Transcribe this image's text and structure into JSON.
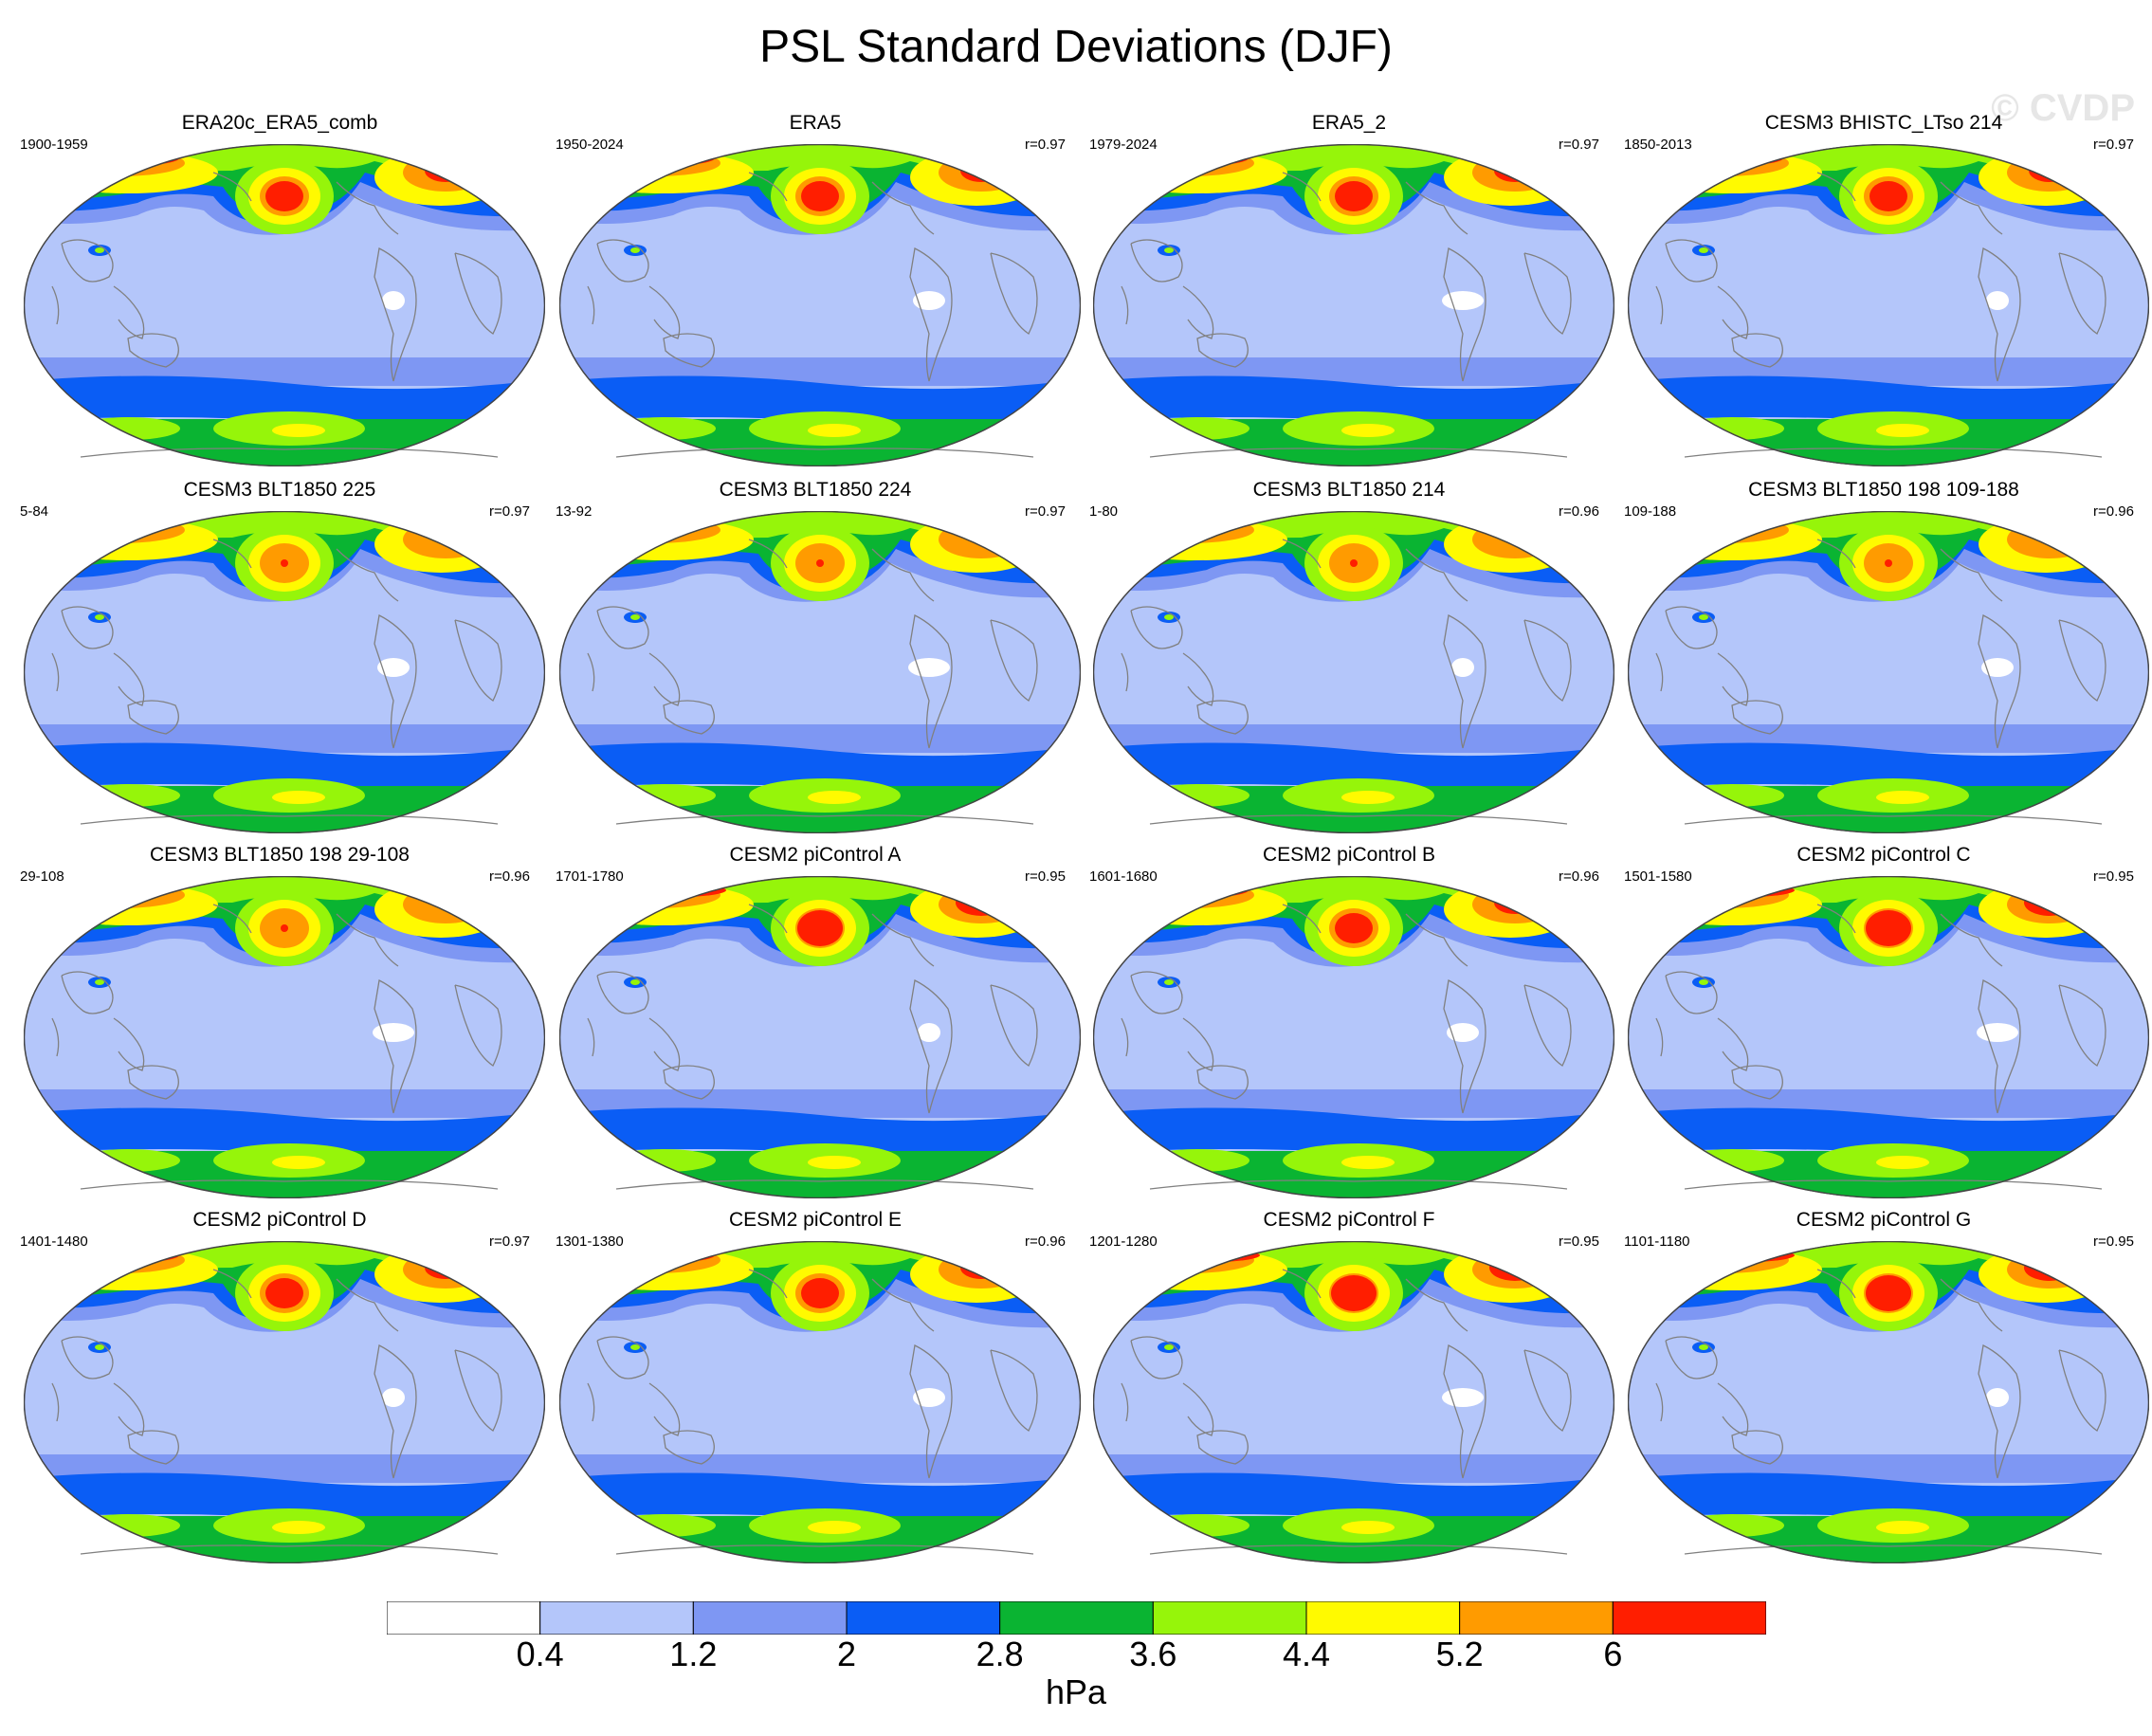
{
  "figure": {
    "title": "PSL Standard Deviations (DJF)",
    "watermark": "© CVDP"
  },
  "panels": [
    {
      "title": "ERA20c_ERA5_comb",
      "period": "1900-1959",
      "corr": ""
    },
    {
      "title": "ERA5",
      "period": "1950-2024",
      "corr": "r=0.97"
    },
    {
      "title": "ERA5_2",
      "period": "1979-2024",
      "corr": "r=0.97"
    },
    {
      "title": "CESM3 BHISTC_LTso 214",
      "period": "1850-2013",
      "corr": "r=0.97"
    },
    {
      "title": "CESM3 BLT1850 225",
      "period": "5-84",
      "corr": "r=0.97"
    },
    {
      "title": "CESM3 BLT1850 224",
      "period": "13-92",
      "corr": "r=0.97"
    },
    {
      "title": "CESM3 BLT1850 214",
      "period": "1-80",
      "corr": "r=0.96"
    },
    {
      "title": "CESM3 BLT1850 198 109-188",
      "period": "109-188",
      "corr": "r=0.96"
    },
    {
      "title": "CESM3 BLT1850 198 29-108",
      "period": "29-108",
      "corr": "r=0.96"
    },
    {
      "title": "CESM2 piControl A",
      "period": "1701-1780",
      "corr": "r=0.95"
    },
    {
      "title": "CESM2 piControl B",
      "period": "1601-1680",
      "corr": "r=0.96"
    },
    {
      "title": "CESM2 piControl C",
      "period": "1501-1580",
      "corr": "r=0.95"
    },
    {
      "title": "CESM2 piControl D",
      "period": "1401-1480",
      "corr": "r=0.97"
    },
    {
      "title": "CESM2 piControl E",
      "period": "1301-1380",
      "corr": "r=0.96"
    },
    {
      "title": "CESM2 piControl F",
      "period": "1201-1280",
      "corr": "r=0.95"
    },
    {
      "title": "CESM2 piControl G",
      "period": "1101-1180",
      "corr": "r=0.95"
    }
  ],
  "colorbar": {
    "unit": "hPa",
    "labels": [
      "0.4",
      "1.2",
      "2",
      "2.8",
      "3.6",
      "4.4",
      "5.2",
      "6"
    ],
    "colors": [
      "#ffffff",
      "#b4c6fa",
      "#7e97f3",
      "#0a5df5",
      "#0ab432",
      "#96f50a",
      "#fffa00",
      "#ff9b00",
      "#ff1e00"
    ]
  },
  "map_style": {
    "coastline_color": "#808080",
    "outline_color": "#444444"
  }
}
